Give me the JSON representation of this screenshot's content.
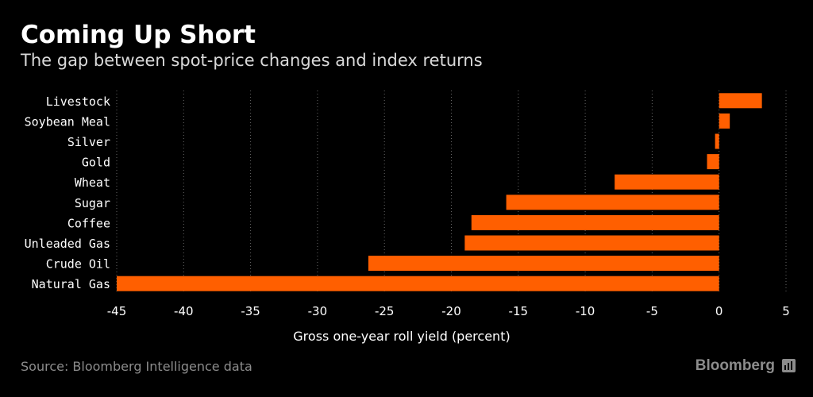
{
  "header": {
    "title": "Coming Up Short",
    "subtitle": "The gap between spot-price changes and index returns"
  },
  "footer": {
    "source": "Source: Bloomberg Intelligence data",
    "brand": "Bloomberg",
    "brand_icon": "bloomberg-terminal-icon"
  },
  "colors": {
    "background": "#000000",
    "bar": "#ff5f00",
    "text": "#ffffff",
    "muted": "#8c8c8c",
    "grid": "#666666"
  },
  "chart_data": {
    "type": "bar",
    "orientation": "horizontal",
    "title": "Coming Up Short",
    "subtitle": "The gap between spot-price changes and index returns",
    "xlabel": "Gross one-year roll yield (percent)",
    "ylabel": "",
    "xlim": [
      -45,
      5
    ],
    "xticks": [
      -45,
      -40,
      -35,
      -30,
      -25,
      -20,
      -15,
      -10,
      -5,
      0,
      5
    ],
    "grid": "vertical-dotted",
    "legend": "none",
    "categories": [
      "Livestock",
      "Soybean Meal",
      "Silver",
      "Gold",
      "Wheat",
      "Sugar",
      "Coffee",
      "Unleaded Gas",
      "Crude Oil",
      "Natural Gas"
    ],
    "values": [
      3.2,
      0.8,
      -0.3,
      -0.9,
      -7.8,
      -15.9,
      -18.5,
      -19.0,
      -26.2,
      -45.0
    ]
  }
}
